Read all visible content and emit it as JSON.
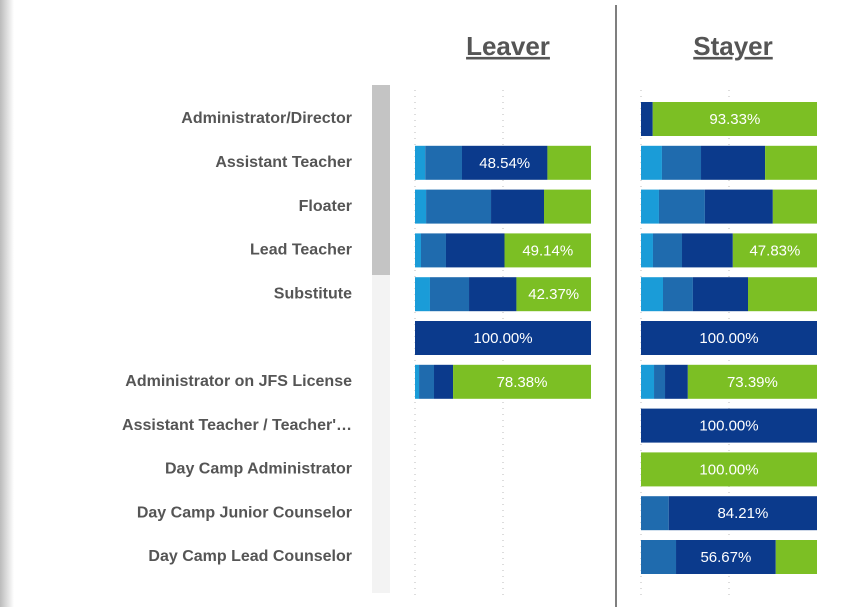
{
  "chart_data": [
    {
      "type": "bar",
      "title": "Leaver",
      "categories": [
        "Administrator/Director",
        "Assistant Teacher",
        "Floater",
        "Lead Teacher",
        "Substitute",
        null,
        "Administrator on JFS License",
        "Assistant Teacher / Teacher'…",
        "Day Camp Administrator",
        "Day Camp Junior Counselor",
        "Day Camp Lead Counselor"
      ],
      "xlim": [
        0,
        100
      ],
      "xticks": [
        0,
        50
      ],
      "grid": true,
      "series": [
        {
          "color": "#1a9cd8",
          "values": [
            null,
            5.83,
            6.3,
            3.4,
            8.5,
            null,
            2.3,
            null,
            null,
            null,
            null
          ],
          "value_labels": [
            null,
            null,
            null,
            null,
            null,
            null,
            null,
            null,
            null,
            null,
            null
          ]
        },
        {
          "color": "#1f6bae",
          "values": [
            null,
            20.87,
            36.9,
            14.2,
            22.2,
            null,
            8.5,
            null,
            null,
            null,
            null
          ],
          "value_labels": [
            null,
            null,
            null,
            null,
            null,
            null,
            null,
            null,
            null,
            null,
            null
          ]
        },
        {
          "color": "#0b3a8c",
          "values": [
            null,
            48.54,
            30.1,
            33.26,
            26.93,
            100,
            10.82,
            null,
            null,
            null,
            null
          ],
          "value_labels": [
            null,
            "48.54%",
            null,
            null,
            null,
            "100.00%",
            null,
            null,
            null,
            null,
            null
          ]
        },
        {
          "color": "#7cbf24",
          "values": [
            null,
            24.76,
            26.7,
            49.14,
            42.37,
            null,
            78.38,
            null,
            null,
            null,
            null
          ],
          "value_labels": [
            null,
            null,
            null,
            "49.14%",
            "42.37%",
            null,
            "78.38%",
            null,
            null,
            null,
            null
          ]
        }
      ]
    },
    {
      "type": "bar",
      "title": "Stayer",
      "xlim": [
        0,
        100
      ],
      "xticks": [
        0,
        50
      ],
      "grid": true,
      "series": [
        {
          "color": "#1a9cd8",
          "values": [
            null,
            11.9,
            10.2,
            6.8,
            12.5,
            null,
            7.4,
            null,
            null,
            null,
            null
          ],
          "value_labels": [
            null,
            null,
            null,
            null,
            null,
            null,
            null,
            null,
            null,
            null,
            null
          ]
        },
        {
          "color": "#1f6bae",
          "values": [
            null,
            22.2,
            26.1,
            16.5,
            17,
            null,
            6.25,
            null,
            null,
            15.79,
            19.9
          ],
          "value_labels": [
            null,
            null,
            null,
            null,
            null,
            null,
            null,
            null,
            null,
            null,
            null
          ]
        },
        {
          "color": "#0b3a8c",
          "values": [
            6.67,
            36.4,
            38.6,
            28.87,
            31.3,
            100,
            12.96,
            100,
            null,
            84.21,
            56.67
          ],
          "value_labels": [
            null,
            null,
            null,
            null,
            null,
            "100.00%",
            null,
            "100.00%",
            null,
            "84.21%",
            "56.67%"
          ]
        },
        {
          "color": "#7cbf24",
          "values": [
            93.33,
            29.5,
            25.1,
            47.83,
            39.2,
            null,
            73.39,
            null,
            100,
            null,
            23.43
          ],
          "value_labels": [
            "93.33%",
            null,
            null,
            "47.83%",
            null,
            null,
            "73.39%",
            null,
            "100.00%",
            null,
            null
          ]
        }
      ]
    }
  ]
}
